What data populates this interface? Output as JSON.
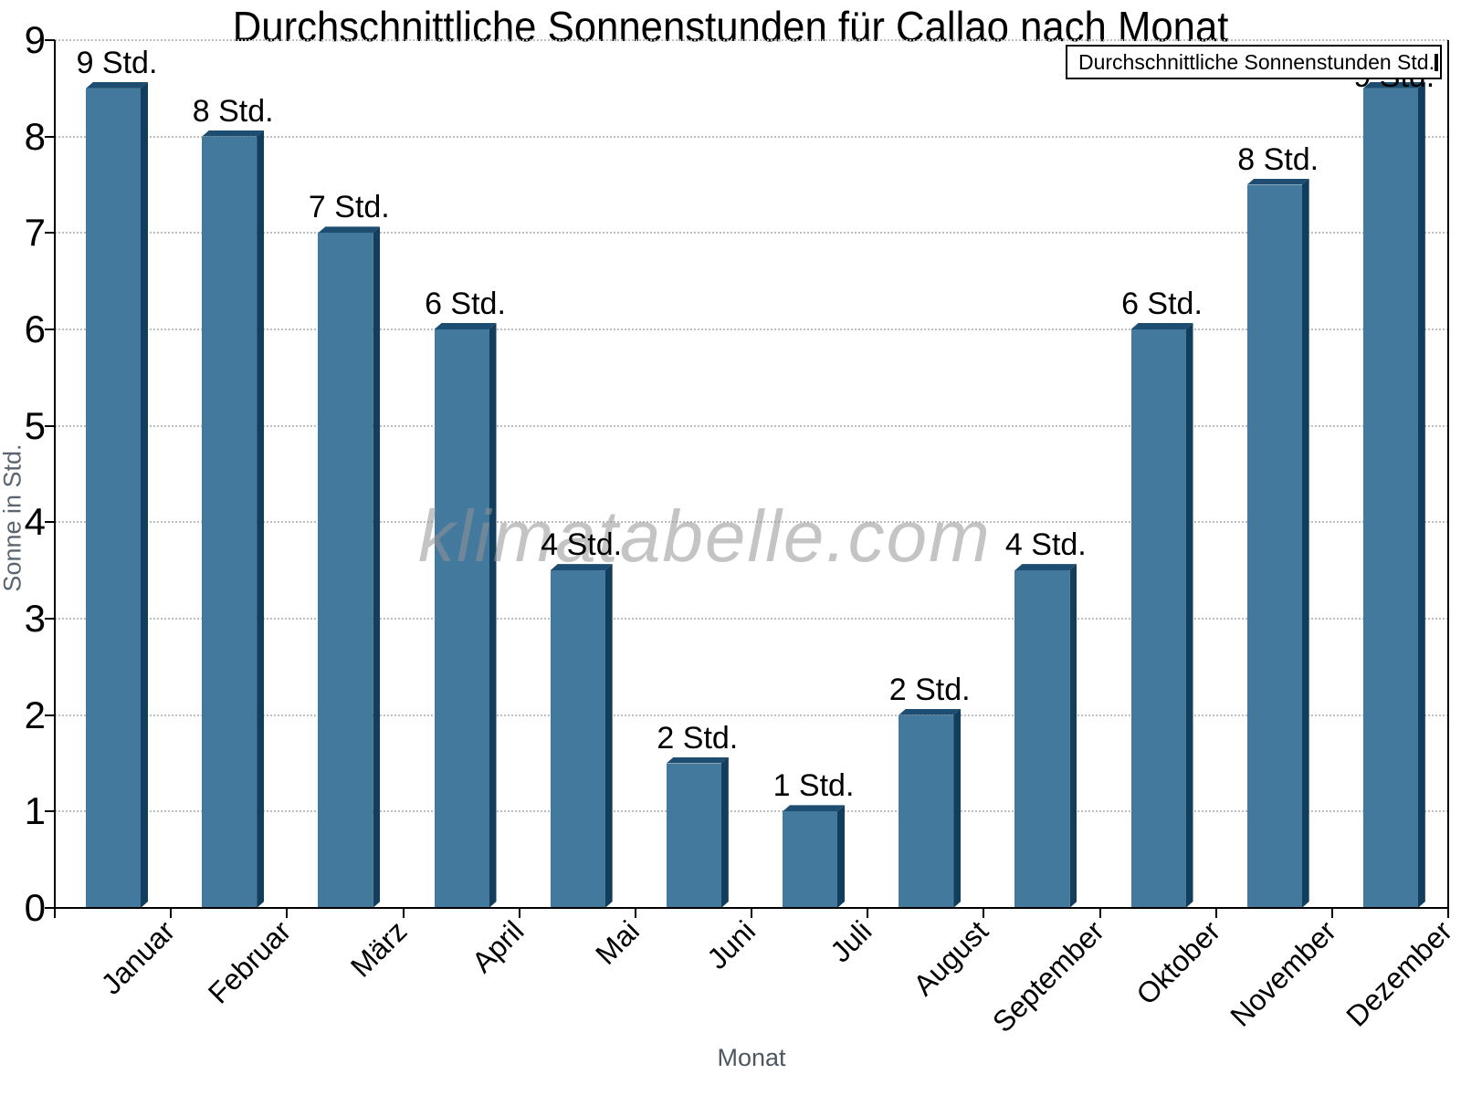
{
  "title": "Durchschnittliche Sonnenstunden für Callao nach Monat",
  "watermark": "klimatabelle.com",
  "legend": {
    "label": "Durchschnittliche Sonnenstunden Std."
  },
  "y_axis": {
    "title": "Sonne in Std.",
    "tick_labels": [
      "0",
      "1",
      "2",
      "3",
      "4",
      "5",
      "6",
      "7",
      "8",
      "9"
    ]
  },
  "x_axis": {
    "title": "Monat"
  },
  "chart_data": {
    "type": "bar",
    "title": "Durchschnittliche Sonnenstunden für Callao nach Monat",
    "xlabel": "Monat",
    "ylabel": "Sonne in Std.",
    "ylim": [
      0,
      9
    ],
    "grid": "horizontal dotted",
    "legend_position": "top-right",
    "legend_entries": [
      "Durchschnittliche Sonnenstunden Std."
    ],
    "categories": [
      "Januar",
      "Februar",
      "März",
      "April",
      "Mai",
      "Juni",
      "Juli",
      "August",
      "September",
      "Oktober",
      "November",
      "Dezember"
    ],
    "values": [
      8.5,
      8,
      7,
      6,
      3.5,
      1.5,
      1,
      2,
      3.5,
      6,
      7.5,
      8.5
    ],
    "bar_labels": [
      "9 Std.",
      "8 Std.",
      "7 Std.",
      "6 Std.",
      "4 Std.",
      "2 Std.",
      "1 Std.",
      "2 Std.",
      "4 Std.",
      "6 Std.",
      "8 Std.",
      "9 Std."
    ],
    "colors": {
      "bar_front": "#44799E",
      "bar_top": "#1D4D70",
      "bar_side": "#113E5C"
    }
  }
}
